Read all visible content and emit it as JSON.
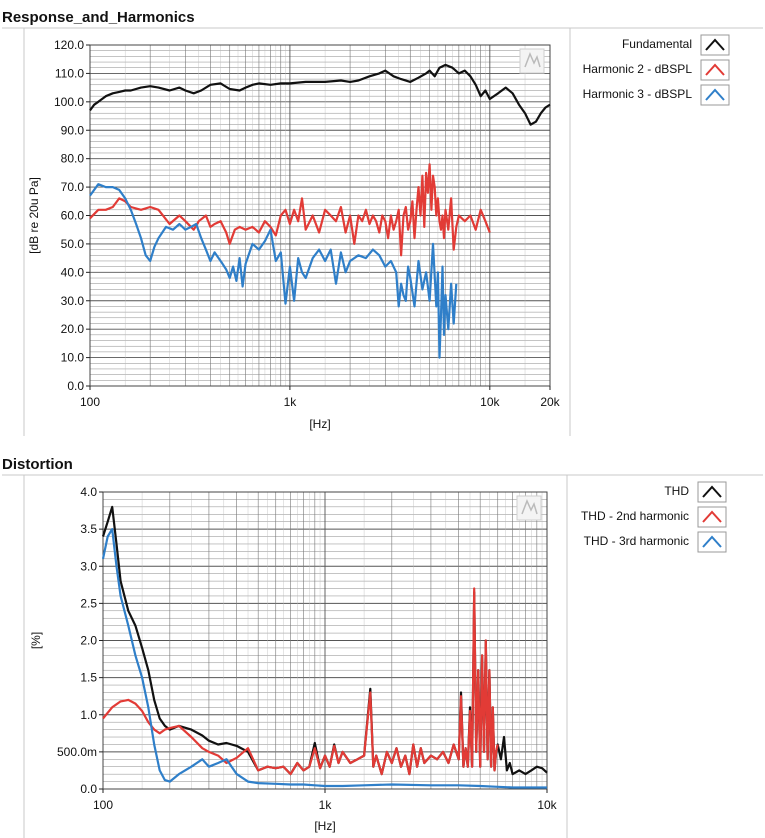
{
  "chart_data": [
    {
      "type": "line",
      "title": "Response_and_Harmonics",
      "xlabel": "[Hz]",
      "ylabel": "[dB re 20u Pa]",
      "xscale": "log",
      "xlim": [
        100,
        20000
      ],
      "ylim": [
        0,
        120
      ],
      "grid": true,
      "legend_position": "right",
      "x_ticks": [
        {
          "v": 100,
          "label": "100"
        },
        {
          "v": 1000,
          "label": "1k"
        },
        {
          "v": 10000,
          "label": "10k"
        },
        {
          "v": 20000,
          "label": "20k"
        }
      ],
      "y_ticks": [
        {
          "v": 0,
          "label": "0.0"
        },
        {
          "v": 10,
          "label": "10.0"
        },
        {
          "v": 20,
          "label": "20.0"
        },
        {
          "v": 30,
          "label": "30.0"
        },
        {
          "v": 40,
          "label": "40.0"
        },
        {
          "v": 50,
          "label": "50.0"
        },
        {
          "v": 60,
          "label": "60.0"
        },
        {
          "v": 70,
          "label": "70.0"
        },
        {
          "v": 80,
          "label": "80.0"
        },
        {
          "v": 90,
          "label": "90.0"
        },
        {
          "v": 100,
          "label": "100.0"
        },
        {
          "v": 110,
          "label": "110.0"
        },
        {
          "v": 120,
          "label": "120.0"
        }
      ],
      "series": [
        {
          "name": "Fundamental",
          "color": "#111111",
          "x": [
            100,
            105,
            110,
            120,
            130,
            140,
            150,
            160,
            180,
            200,
            220,
            250,
            280,
            300,
            330,
            360,
            400,
            450,
            500,
            560,
            600,
            650,
            700,
            800,
            900,
            1000,
            1200,
            1500,
            1800,
            2000,
            2200,
            2500,
            2800,
            3000,
            3300,
            3600,
            4000,
            4400,
            4800,
            5000,
            5300,
            5600,
            6000,
            6500,
            7000,
            7500,
            8000,
            8500,
            9000,
            9500,
            10000,
            11000,
            12000,
            13000,
            14000,
            15000,
            16000,
            17000,
            18000,
            19000,
            20000
          ],
          "y": [
            97,
            99,
            100,
            102,
            103,
            103.5,
            104,
            104,
            105,
            105.5,
            105,
            104,
            105,
            104,
            103,
            104,
            106,
            106.5,
            104.5,
            104,
            105,
            106,
            106.5,
            106,
            106.5,
            106.5,
            107,
            107,
            107.5,
            107,
            107.5,
            109,
            110,
            111,
            109,
            108,
            107,
            108.5,
            110,
            111,
            109,
            112,
            113,
            112,
            110,
            111,
            109,
            106,
            102,
            104,
            101,
            103,
            105,
            103,
            99,
            96,
            92,
            93,
            96,
            98,
            99
          ]
        },
        {
          "name": "Harmonic 2 - dBSPL",
          "color": "#e23b36",
          "x": [
            100,
            110,
            120,
            130,
            140,
            150,
            160,
            180,
            200,
            220,
            250,
            280,
            300,
            330,
            350,
            380,
            400,
            420,
            450,
            480,
            500,
            530,
            560,
            600,
            650,
            700,
            750,
            800,
            850,
            900,
            950,
            1000,
            1050,
            1100,
            1150,
            1200,
            1300,
            1400,
            1500,
            1600,
            1700,
            1800,
            1900,
            2000,
            2100,
            2200,
            2300,
            2400,
            2500,
            2600,
            2700,
            2800,
            2900,
            3000,
            3100,
            3200,
            3300,
            3400,
            3500,
            3600,
            3700,
            3800,
            3900,
            4000,
            4100,
            4200,
            4300,
            4400,
            4500,
            4600,
            4700,
            4800,
            4900,
            5000,
            5100,
            5200,
            5300,
            5400,
            5500,
            5600,
            5700,
            5800,
            5900,
            6000,
            6200,
            6400,
            6600,
            6800,
            7000,
            7500,
            8000,
            8500,
            9000,
            9500,
            10000
          ],
          "y": [
            59,
            62,
            62,
            63,
            66,
            65,
            63,
            62,
            63,
            62,
            57,
            60,
            58,
            55,
            58,
            60,
            56,
            57,
            58,
            54,
            50,
            55,
            56,
            55,
            56,
            54,
            58,
            56,
            53,
            60,
            62,
            57,
            62,
            58,
            66,
            55,
            60,
            54,
            62,
            60,
            58,
            63,
            54,
            60,
            50,
            60,
            58,
            62,
            57,
            60,
            58,
            54,
            60,
            58,
            52,
            60,
            55,
            58,
            62,
            46,
            60,
            63,
            55,
            58,
            65,
            52,
            62,
            70,
            60,
            74,
            56,
            75,
            68,
            78,
            62,
            74,
            70,
            60,
            66,
            58,
            55,
            60,
            52,
            62,
            55,
            66,
            48,
            56,
            60,
            58,
            60,
            55,
            62,
            58,
            54
          ]
        },
        {
          "name": "Harmonic 3 - dBSPL",
          "color": "#2f7fc9",
          "x": [
            100,
            110,
            120,
            130,
            140,
            150,
            160,
            170,
            180,
            190,
            200,
            210,
            220,
            240,
            260,
            280,
            300,
            320,
            340,
            360,
            380,
            400,
            420,
            440,
            460,
            480,
            500,
            520,
            540,
            560,
            580,
            600,
            650,
            700,
            750,
            800,
            850,
            900,
            950,
            1000,
            1050,
            1100,
            1150,
            1200,
            1300,
            1400,
            1500,
            1600,
            1700,
            1800,
            1900,
            2000,
            2200,
            2400,
            2600,
            2800,
            3000,
            3200,
            3400,
            3500,
            3600,
            3700,
            3800,
            3900,
            4000,
            4200,
            4400,
            4600,
            4800,
            5000,
            5200,
            5400,
            5500,
            5600,
            5700,
            5800,
            5900,
            6000,
            6200,
            6400,
            6600,
            6800
          ],
          "y": [
            67,
            71,
            70,
            70,
            69,
            66,
            62,
            57,
            52,
            46,
            44,
            49,
            52,
            56,
            55,
            57,
            55,
            56,
            57,
            52,
            48,
            44,
            47,
            45,
            43,
            41,
            38,
            42,
            37,
            45,
            35,
            43,
            50,
            48,
            51,
            55,
            44,
            47,
            29,
            42,
            30,
            45,
            40,
            38,
            45,
            48,
            44,
            48,
            36,
            47,
            40,
            44,
            46,
            45,
            48,
            46,
            42,
            44,
            40,
            28,
            36,
            32,
            30,
            42,
            38,
            28,
            44,
            34,
            40,
            30,
            50,
            28,
            40,
            10,
            25,
            42,
            18,
            32,
            20,
            36,
            22,
            36
          ]
        }
      ]
    },
    {
      "type": "line",
      "title": "Distortion",
      "xlabel": "[Hz]",
      "ylabel": "[%]",
      "xscale": "log",
      "xlim": [
        100,
        10000
      ],
      "ylim": [
        0,
        4.0
      ],
      "grid": true,
      "legend_position": "right",
      "x_ticks": [
        {
          "v": 100,
          "label": "100"
        },
        {
          "v": 1000,
          "label": "1k"
        },
        {
          "v": 10000,
          "label": "10k"
        }
      ],
      "y_ticks": [
        {
          "v": 0,
          "label": "0.0"
        },
        {
          "v": 0.5,
          "label": "500.0m"
        },
        {
          "v": 1.0,
          "label": "1.0"
        },
        {
          "v": 1.5,
          "label": "1.5"
        },
        {
          "v": 2.0,
          "label": "2.0"
        },
        {
          "v": 2.5,
          "label": "2.5"
        },
        {
          "v": 3.0,
          "label": "3.0"
        },
        {
          "v": 3.5,
          "label": "3.5"
        },
        {
          "v": 4.0,
          "label": "4.0"
        }
      ],
      "series": [
        {
          "name": "THD",
          "color": "#111111",
          "x": [
            100,
            105,
            110,
            115,
            120,
            130,
            140,
            150,
            160,
            170,
            180,
            190,
            200,
            220,
            250,
            280,
            300,
            330,
            360,
            400,
            450,
            500,
            550,
            600,
            650,
            700,
            750,
            800,
            850,
            900,
            950,
            1000,
            1050,
            1100,
            1150,
            1200,
            1300,
            1400,
            1500,
            1600,
            1650,
            1700,
            1800,
            1900,
            2000,
            2100,
            2200,
            2300,
            2400,
            2500,
            2600,
            2700,
            2800,
            3000,
            3200,
            3400,
            3600,
            3800,
            4000,
            4100,
            4200,
            4300,
            4400,
            4500,
            4600,
            4700,
            4800,
            4900,
            5000,
            5100,
            5200,
            5300,
            5400,
            5500,
            5600,
            5700,
            5800,
            5900,
            6000,
            6200,
            6400,
            6600,
            6800,
            7000,
            7500,
            8000,
            8500,
            9000,
            9500,
            10000
          ],
          "y": [
            3.4,
            3.6,
            3.8,
            3.3,
            2.8,
            2.4,
            2.2,
            1.9,
            1.6,
            1.2,
            0.95,
            0.85,
            0.8,
            0.85,
            0.8,
            0.72,
            0.65,
            0.6,
            0.62,
            0.58,
            0.5,
            0.25,
            0.3,
            0.28,
            0.3,
            0.2,
            0.35,
            0.25,
            0.3,
            0.62,
            0.28,
            0.45,
            0.3,
            0.6,
            0.35,
            0.5,
            0.35,
            0.4,
            0.45,
            1.35,
            0.3,
            0.45,
            0.2,
            0.5,
            0.35,
            0.55,
            0.3,
            0.45,
            0.2,
            0.6,
            0.3,
            0.55,
            0.35,
            0.45,
            0.4,
            0.5,
            0.35,
            0.6,
            0.4,
            1.3,
            0.3,
            0.55,
            0.3,
            1.1,
            0.3,
            2.65,
            0.5,
            1.6,
            0.3,
            1.8,
            0.5,
            2.0,
            0.4,
            1.6,
            0.3,
            1.1,
            0.25,
            0.5,
            0.6,
            0.4,
            0.7,
            0.25,
            0.35,
            0.2,
            0.25,
            0.2,
            0.25,
            0.3,
            0.28,
            0.22
          ]
        },
        {
          "name": "THD - 2nd harmonic",
          "color": "#e23b36",
          "x": [
            100,
            110,
            120,
            130,
            140,
            150,
            160,
            170,
            180,
            190,
            200,
            220,
            250,
            280,
            300,
            330,
            360,
            400,
            450,
            500,
            550,
            600,
            650,
            700,
            750,
            800,
            850,
            900,
            950,
            1000,
            1050,
            1100,
            1150,
            1200,
            1300,
            1400,
            1500,
            1600,
            1650,
            1700,
            1800,
            1900,
            2000,
            2100,
            2200,
            2300,
            2400,
            2500,
            2600,
            2700,
            2800,
            3000,
            3200,
            3400,
            3600,
            3800,
            4000,
            4100,
            4200,
            4300,
            4400,
            4500,
            4600,
            4700,
            4800,
            4900,
            5000,
            5100,
            5200,
            5300,
            5400,
            5500,
            5600,
            5700,
            5800,
            5900,
            6000
          ],
          "y": [
            0.95,
            1.1,
            1.18,
            1.2,
            1.15,
            1.05,
            0.9,
            0.8,
            0.75,
            0.8,
            0.82,
            0.85,
            0.7,
            0.55,
            0.5,
            0.45,
            0.35,
            0.42,
            0.55,
            0.25,
            0.3,
            0.28,
            0.3,
            0.2,
            0.35,
            0.25,
            0.3,
            0.55,
            0.28,
            0.45,
            0.3,
            0.58,
            0.35,
            0.5,
            0.35,
            0.4,
            0.45,
            1.3,
            0.3,
            0.45,
            0.2,
            0.5,
            0.35,
            0.55,
            0.3,
            0.45,
            0.2,
            0.6,
            0.3,
            0.55,
            0.35,
            0.45,
            0.4,
            0.5,
            0.35,
            0.6,
            0.4,
            1.25,
            0.3,
            0.55,
            0.3,
            1.05,
            0.3,
            2.7,
            0.5,
            1.6,
            0.3,
            1.8,
            0.5,
            2.0,
            0.4,
            1.6,
            0.3,
            1.1,
            0.25,
            0.5,
            0.6
          ]
        },
        {
          "name": "THD - 3rd harmonic",
          "color": "#2f7fc9",
          "x": [
            100,
            105,
            110,
            115,
            120,
            130,
            140,
            150,
            160,
            170,
            180,
            190,
            200,
            220,
            250,
            280,
            300,
            330,
            360,
            400,
            450,
            500,
            600,
            700,
            800,
            900,
            1000,
            1200,
            1500,
            2000,
            3000,
            4000,
            5000,
            6000,
            7000,
            8000,
            9000,
            10000
          ],
          "y": [
            3.1,
            3.4,
            3.5,
            3.0,
            2.6,
            2.2,
            1.8,
            1.5,
            1.1,
            0.6,
            0.25,
            0.12,
            0.1,
            0.2,
            0.3,
            0.4,
            0.3,
            0.35,
            0.4,
            0.2,
            0.1,
            0.08,
            0.07,
            0.06,
            0.06,
            0.05,
            0.04,
            0.04,
            0.05,
            0.06,
            0.05,
            0.05,
            0.04,
            0.03,
            0.02,
            0.02,
            0.02,
            0.02
          ]
        }
      ]
    }
  ]
}
